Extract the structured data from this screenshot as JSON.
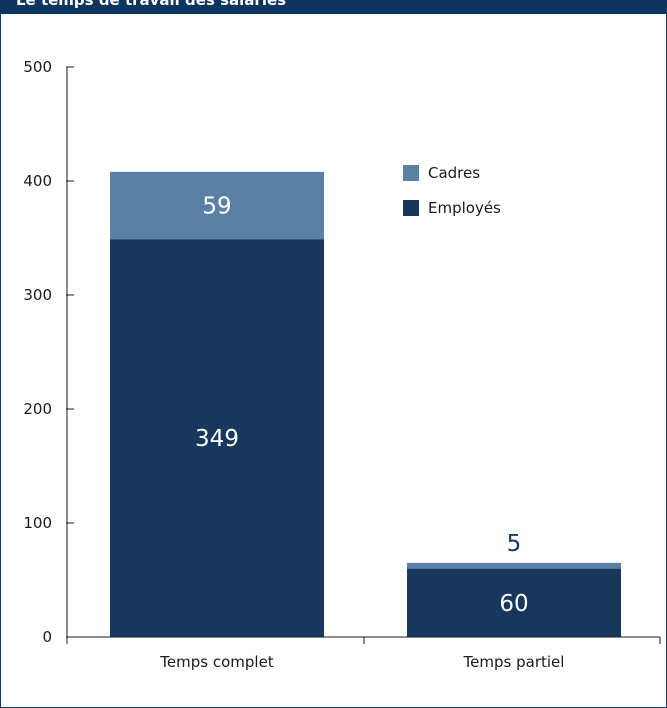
{
  "title": "Le temps de travail des salariés",
  "colors": {
    "header_bg": "#0e3560",
    "cadres": "#5b80a6",
    "employes": "#17375e",
    "axis": "#1a1a1a"
  },
  "chart_data": {
    "type": "bar",
    "stacked": true,
    "categories": [
      "Temps complet",
      "Temps partiel"
    ],
    "series": [
      {
        "name": "Employés",
        "values": [
          349,
          60
        ]
      },
      {
        "name": "Cadres",
        "values": [
          59,
          5
        ]
      }
    ],
    "data_labels": {
      "Employés": [
        "349",
        "60"
      ],
      "Cadres": [
        "59",
        "5"
      ]
    },
    "ylim": [
      0,
      500
    ],
    "yticks": [
      0,
      100,
      200,
      300,
      400,
      500
    ],
    "grid": false,
    "legend_position": "top-right"
  }
}
